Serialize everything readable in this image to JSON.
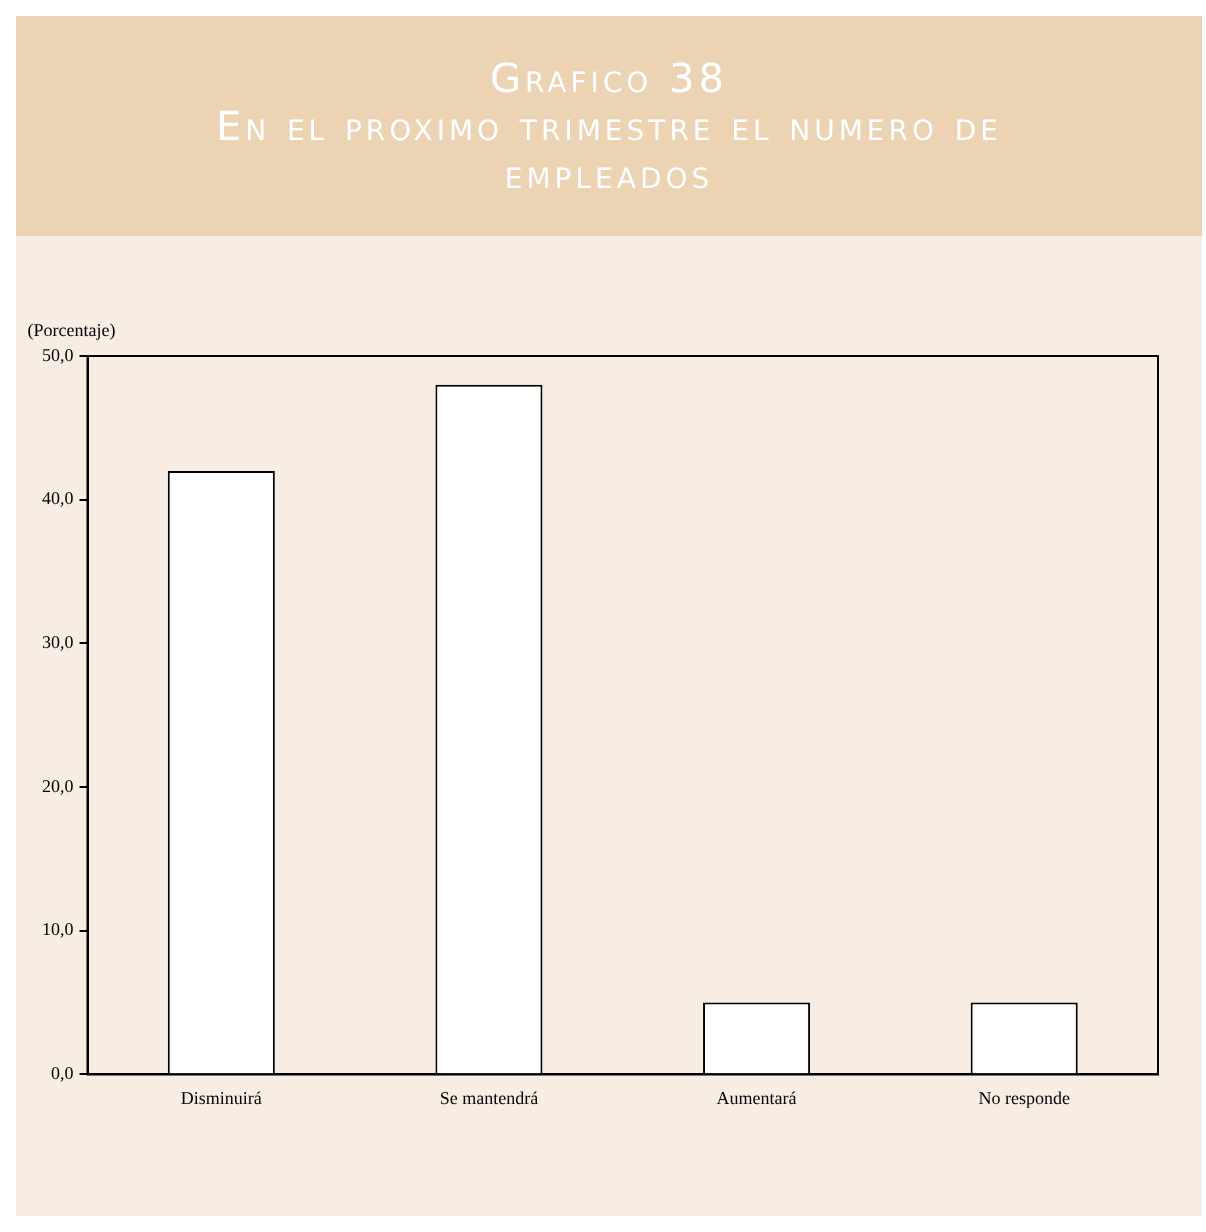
{
  "chart_data": {
    "type": "bar",
    "title": "Grafico 38",
    "subtitle": "En el proximo trimestre el numero de empleados",
    "ylabel": "(Porcentaje)",
    "categories": [
      "Disminuirá",
      "Se mantendrá",
      "Aumentará",
      "No responde"
    ],
    "values": [
      42,
      48,
      5,
      5
    ],
    "color": "#ffffff",
    "ylim": [
      0,
      50
    ],
    "yticks": [
      {
        "value": 0,
        "label": "0,0"
      },
      {
        "value": 10,
        "label": "10,0"
      },
      {
        "value": 20,
        "label": "20,0"
      },
      {
        "value": 30,
        "label": "30,0"
      },
      {
        "value": 40,
        "label": "40,0"
      },
      {
        "value": 50,
        "label": "50,0"
      }
    ],
    "grid": false,
    "legend": false
  }
}
